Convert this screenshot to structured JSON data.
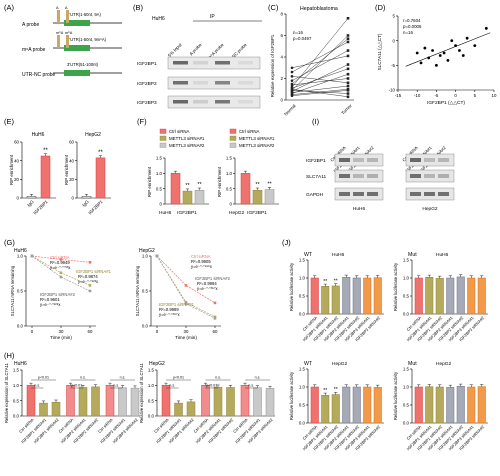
{
  "colors": {
    "red": "#f0726f",
    "red_dark": "#d73b3b",
    "olive": "#b5aa5c",
    "olive_dark": "#8e8439",
    "grey": "#c9c9c9",
    "grey_dark": "#8f8f8f",
    "orange": "#f29a4a",
    "pink": "#f28c8c",
    "mid_grey": "#9e9e9e",
    "blue_grey": "#a6aab7",
    "blot": "#5a5a5a",
    "probe_green": "#3ea44a",
    "probe_tan": "#c9a867"
  },
  "panels": {
    "A": "(A)",
    "B": "(B)",
    "C": "(C)",
    "D": "(D)",
    "E": "(E)",
    "F": "(F)",
    "G": "(G)",
    "H": "(H)",
    "I": "(I)",
    "J": "(J)"
  },
  "A": {
    "probes": [
      {
        "name": "A probe",
        "utr": "3'UTR(1-50nt, 9A)",
        "marks": [
          "A",
          "A"
        ]
      },
      {
        "name": "m⁶A probe",
        "utr": "3'UTR(1-50nt, 9m⁶A)",
        "marks": [
          "m⁶A",
          "m⁶A"
        ]
      },
      {
        "name": "UTR-NC probe",
        "utr": "3'UTR(51-100nt)",
        "marks": []
      }
    ]
  },
  "B": {
    "cell": "HuH6",
    "ip": "IP",
    "lanes": [
      "5% Input",
      "A probe",
      "m⁶A probe",
      "UTR-NC probe"
    ],
    "rows": [
      "IGF2BP1",
      "IGF2BP2",
      "IGF2BP3"
    ]
  },
  "C": {
    "title": "Hepatoblastoma",
    "n": "n=16",
    "p": "p=0.0497",
    "ylabel": "Relative expression of IGF2BP1",
    "yticks": [
      "8",
      "6",
      "4",
      "2",
      "0"
    ],
    "xticks": [
      "Normal",
      "Tumor"
    ]
  },
  "D": {
    "r": "r=0.7604",
    "p": "p=0.0006",
    "n": "n=16",
    "ylabel": "SLC7A11 (△△CT)",
    "xlabel": "IGF2BP1 (△△CT)",
    "yticks": [
      "5",
      "0",
      "-5",
      "-10"
    ],
    "xticks": [
      "-15",
      "-10",
      "-5",
      "0",
      "5",
      "10"
    ]
  },
  "E": {
    "charts": [
      {
        "title": "HuH6",
        "ylabel": "RIP enrichment",
        "yticks": [
          "60",
          "40",
          "20",
          "0"
        ],
        "categories": [
          "IgG",
          "IGF2BP1"
        ],
        "sig": "**"
      },
      {
        "title": "HepG2",
        "ylabel": "RIP enrichment",
        "yticks": [
          "60",
          "40",
          "20",
          "0"
        ],
        "categories": [
          "IgG",
          "IGF2BP1"
        ],
        "sig": "**"
      }
    ]
  },
  "F": {
    "legend": [
      "Ctrl siRNA",
      "METTL3 siRNA#1",
      "METTL3 siRNA#2",
      "Ctrl siRNA",
      "METTL3 siRNA#1",
      "METTL3 siRNA#2"
    ],
    "charts": [
      {
        "ylabel": "RIP enrichment",
        "yticks": [
          "1.5",
          "1.0",
          "0.5",
          "0"
        ],
        "xlabel": "HuH6",
        "category": "IGF2BP1",
        "sig": [
          "**",
          "**"
        ]
      },
      {
        "ylabel": "RIP enrichment",
        "yticks": [
          "1.5",
          "1.0",
          "0.5",
          "0"
        ],
        "xlabel": "HepG2",
        "category": "IGF2BP1",
        "sig": [
          "**",
          "**"
        ]
      }
    ]
  },
  "G": {
    "charts": [
      {
        "title": "HuH6",
        "ylabel": "SLC7A11 mRNA remaining",
        "yticks": [
          "1.0",
          "0.5",
          "0.0"
        ],
        "xticks": [
          "0",
          "30",
          "60"
        ],
        "xlabel": "Time (min)",
        "legend": [
          "Ctrl siRNA",
          "IGF2BP1 siRNA#1",
          "IGF2BP1 siRNA#2"
        ],
        "annotations": [
          "R²=0.9949",
          "y=e⁻⁰·⁰⁰¹³x",
          "R²=0.9874",
          "y=e⁻⁰·⁰²²³x",
          "R²=0.9601",
          "y=e⁻⁰·⁰²²⁸x"
        ]
      },
      {
        "title": "HepG2",
        "ylabel": "SLC7A11 mRNA remaining",
        "yticks": [
          "1.0",
          "0.5",
          "0.0"
        ],
        "xticks": [
          "0",
          "30",
          "60"
        ],
        "xlabel": "Time (min)",
        "legend": [
          "Ctrl siRNA",
          "IGF2BP1 siRNA#2",
          "IGF2BP1 siRNA#1"
        ],
        "annotations": [
          "R²=0.9905",
          "y=e⁻⁰·⁰¹⁸⁶x",
          "R²=0.9994",
          "y=e⁻⁰·⁰³⁵⁷x",
          "R²=0.9989",
          "y=e⁻⁰·⁰³⁶⁷x"
        ]
      }
    ]
  },
  "H": {
    "charts": [
      {
        "title": "HuH6",
        "ylabel": "Relative expression of SLC7A11",
        "yticks": [
          "1.5",
          "1.0",
          "0.5",
          "0.0"
        ],
        "brackets": [
          "p<0.01",
          "n.s.",
          "n.s.",
          "p<0.01",
          "n.s.",
          "n.s."
        ],
        "categories": [
          "Ctrl siRNA",
          "IGF2BP1 siRNA#1",
          "IGF2BP1 siRNA#2",
          "Ctrl siRNA",
          "IGF2BP2 siRNA#1",
          "IGF2BP2 siRNA#2",
          "Ctrl siRNA",
          "IGF2BP3 siRNA#1",
          "IGF2BP3 siRNA#2"
        ]
      },
      {
        "title": "HepG2",
        "ylabel": "Relative expression of SLC7A11",
        "yticks": [
          "1.5",
          "1.0",
          "0.5",
          "0.0"
        ],
        "brackets": [
          "p<0.01",
          "n.s.",
          "n.s.",
          "p<0.01",
          "n.s.",
          "n.s."
        ],
        "categories": [
          "Ctrl siRNA",
          "IGF2BP1 siRNA#1",
          "IGF2BP1 siRNA#2",
          "Ctrl siRNA",
          "IGF2BP2 siRNA#1",
          "IGF2BP2 siRNA#2",
          "Ctrl siRNA",
          "IGF2BP3 siRNA#1",
          "IGF2BP3 siRNA#2"
        ]
      }
    ]
  },
  "I": {
    "lanes": [
      "Ctrl siRNA",
      "IGF2BP1 siRNA#1",
      "IGF2BP1 siRNA#2",
      "Ctrl siRNA",
      "IGF2BP1 siRNA#1",
      "IGF2BP1 siRNA#2"
    ],
    "rows": [
      "IGF2BP1",
      "SLC7A11",
      "GAPDH"
    ],
    "cells": [
      "HuH6",
      "HepG2"
    ]
  },
  "J": {
    "charts": [
      {
        "tag": "WT",
        "cell": "HuH6",
        "ylabel": "Relative luciferase activity",
        "yticks": [
          "1.5",
          "1.0",
          "0.5",
          "0.0"
        ],
        "sig": [
          "**",
          "**"
        ]
      },
      {
        "tag": "Mut",
        "cell": "HuH6",
        "ylabel": "Relative luciferase activity",
        "yticks": [
          "1.5",
          "1.0",
          "0.5",
          "0.0"
        ],
        "sig": []
      },
      {
        "tag": "WT",
        "cell": "HepG2",
        "ylabel": "Relative luciferase activity",
        "yticks": [
          "1.5",
          "1.0",
          "0.5",
          "0.0"
        ],
        "sig": [
          "**",
          "**"
        ]
      },
      {
        "tag": "Mut",
        "cell": "HepG2",
        "ylabel": "Relative luciferase activity",
        "yticks": [
          "1.5",
          "1.0",
          "0.5",
          "0.0"
        ],
        "sig": []
      }
    ],
    "categories": [
      "Ctrl siRNA",
      "IGF2BP1 siRNA#1",
      "IGF2BP1 siRNA#2",
      "IGF2BP2 siRNA#1",
      "IGF2BP2 siRNA#2",
      "IGF2BP3 siRNA#1",
      "IGF2BP3 siRNA#2"
    ]
  },
  "chart_data": [
    {
      "panel": "C",
      "type": "line",
      "title": "Hepatoblastoma",
      "categories": [
        "Normal",
        "Tumor"
      ],
      "ylabel": "Relative expression of IGF2BP1",
      "ylim": [
        0,
        8
      ],
      "pairs": [
        [
          2.6,
          5.4
        ],
        [
          1.2,
          7.6
        ],
        [
          0.9,
          6.0
        ],
        [
          1.5,
          5.7
        ],
        [
          3.0,
          4.1
        ],
        [
          2.2,
          1.6
        ],
        [
          1.8,
          4.6
        ],
        [
          0.8,
          3.3
        ],
        [
          1.1,
          2.9
        ],
        [
          0.6,
          2.4
        ],
        [
          1.4,
          2.0
        ],
        [
          0.7,
          1.3
        ],
        [
          0.5,
          1.0
        ],
        [
          0.9,
          0.6
        ],
        [
          0.4,
          0.9
        ],
        [
          1.0,
          0.3
        ]
      ]
    },
    {
      "panel": "D",
      "type": "scatter",
      "xlabel": "IGF2BP1 (△△CT)",
      "ylabel": "SLC7A11 (△△CT)",
      "xlim": [
        -15,
        10
      ],
      "ylim": [
        -10,
        5
      ],
      "points": [
        [
          -10,
          -2.5
        ],
        [
          -9,
          -4.5
        ],
        [
          -8,
          -1.5
        ],
        [
          -7,
          -3.5
        ],
        [
          -6,
          -2
        ],
        [
          -5,
          -5
        ],
        [
          -4,
          -3
        ],
        [
          -3,
          -2.5
        ],
        [
          -2,
          -4
        ],
        [
          -1,
          0
        ],
        [
          0,
          -1
        ],
        [
          1,
          -2
        ],
        [
          2,
          -3
        ],
        [
          3,
          0.5
        ],
        [
          5,
          -1
        ],
        [
          8,
          2.5
        ]
      ]
    },
    {
      "panel": "E",
      "type": "bar",
      "title": "HuH6",
      "categories": [
        "IgG",
        "IGF2BP1"
      ],
      "values": [
        1,
        45
      ],
      "ylim": [
        0,
        60
      ]
    },
    {
      "panel": "E",
      "type": "bar",
      "title": "HepG2",
      "categories": [
        "IgG",
        "IGF2BP1"
      ],
      "values": [
        1,
        43
      ],
      "ylim": [
        0,
        60
      ]
    },
    {
      "panel": "F",
      "type": "bar",
      "categories": [
        "IGF2BP1"
      ],
      "series": [
        {
          "name": "Ctrl siRNA",
          "values": [
            1.0
          ]
        },
        {
          "name": "METTL3 siRNA#1",
          "values": [
            0.42
          ]
        },
        {
          "name": "METTL3 siRNA#2",
          "values": [
            0.45
          ]
        }
      ],
      "xlabel": "HuH6",
      "ylim": [
        0,
        1.5
      ]
    },
    {
      "panel": "F",
      "type": "bar",
      "categories": [
        "IGF2BP1"
      ],
      "series": [
        {
          "name": "Ctrl siRNA",
          "values": [
            1.0
          ]
        },
        {
          "name": "METTL3 siRNA#1",
          "values": [
            0.45
          ]
        },
        {
          "name": "METTL3 siRNA#2",
          "values": [
            0.47
          ]
        }
      ],
      "xlabel": "HepG2",
      "ylim": [
        0,
        1.5
      ]
    },
    {
      "panel": "G",
      "type": "line",
      "title": "HuH6",
      "x": [
        0,
        30,
        60
      ],
      "series": [
        {
          "name": "Ctrl siRNA",
          "values": [
            1.0,
            0.95,
            0.91
          ]
        },
        {
          "name": "IGF2BP1 siRNA#1",
          "values": [
            1.0,
            0.76,
            0.58
          ]
        },
        {
          "name": "IGF2BP1 siRNA#2",
          "values": [
            1.0,
            0.7,
            0.5
          ]
        }
      ],
      "ylim": [
        0,
        1.0
      ]
    },
    {
      "panel": "G",
      "type": "line",
      "title": "HepG2",
      "x": [
        0,
        30,
        60
      ],
      "series": [
        {
          "name": "Ctrl siRNA",
          "values": [
            1.0,
            0.58,
            0.33
          ]
        },
        {
          "name": "IGF2BP1 siRNA#2",
          "values": [
            1.0,
            0.34,
            0.13
          ]
        },
        {
          "name": "IGF2BP1 siRNA#1",
          "values": [
            1.0,
            0.32,
            0.11
          ]
        }
      ],
      "ylim": [
        0,
        1.0
      ]
    },
    {
      "panel": "H",
      "type": "bar",
      "title": "HuH6",
      "values": [
        1.0,
        0.42,
        0.45,
        1.0,
        0.93,
        0.95,
        1.0,
        0.92,
        0.91
      ],
      "ylim": [
        0,
        1.5
      ]
    },
    {
      "panel": "H",
      "type": "bar",
      "title": "HepG2",
      "values": [
        1.0,
        0.42,
        0.46,
        1.0,
        0.94,
        0.93,
        1.0,
        0.92,
        0.9
      ],
      "ylim": [
        0,
        1.5
      ]
    },
    {
      "panel": "J",
      "type": "bar",
      "title": "WT HuH6",
      "values": [
        1.0,
        0.77,
        0.78,
        1.02,
        1.0,
        1.0,
        1.01
      ],
      "ylim": [
        0,
        1.5
      ]
    },
    {
      "panel": "J",
      "type": "bar",
      "title": "Mut HuH6",
      "values": [
        1.0,
        1.02,
        0.99,
        1.0,
        1.03,
        1.0,
        1.0
      ],
      "ylim": [
        0,
        1.5
      ]
    },
    {
      "panel": "J",
      "type": "bar",
      "title": "WT HepG2",
      "values": [
        1.0,
        0.77,
        0.79,
        1.0,
        1.0,
        1.0,
        0.99
      ],
      "ylim": [
        0,
        1.5
      ]
    },
    {
      "panel": "J",
      "type": "bar",
      "title": "Mut HepG2",
      "values": [
        1.0,
        1.01,
        1.0,
        0.99,
        1.02,
        1.0,
        1.01
      ],
      "ylim": [
        0,
        1.5
      ]
    }
  ]
}
